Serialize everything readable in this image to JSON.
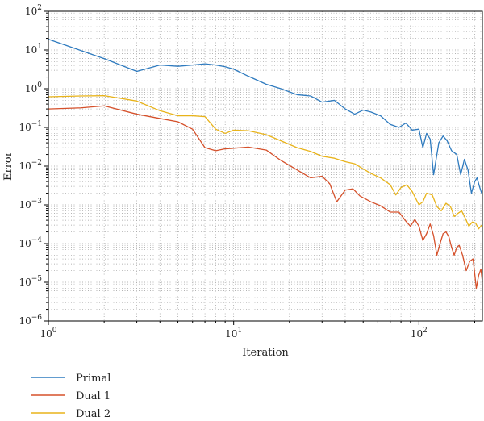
{
  "chart_data": {
    "type": "line",
    "xlabel": "Iteration",
    "ylabel": "Error",
    "xscale": "log",
    "yscale": "log",
    "xlim": [
      1,
      220
    ],
    "ylim": [
      1e-06,
      100
    ],
    "grid": "on (dotted, major and minor)",
    "legend_position": "below-left",
    "x_ticks": [
      {
        "value": 1,
        "base": "10",
        "exp": "0"
      },
      {
        "value": 10,
        "base": "10",
        "exp": "1"
      },
      {
        "value": 100,
        "base": "10",
        "exp": "2"
      }
    ],
    "y_ticks": [
      {
        "value": 1e-06,
        "base": "10",
        "exp": "−6"
      },
      {
        "value": 1e-05,
        "base": "10",
        "exp": "−5"
      },
      {
        "value": 0.0001,
        "base": "10",
        "exp": "−4"
      },
      {
        "value": 0.001,
        "base": "10",
        "exp": "−3"
      },
      {
        "value": 0.01,
        "base": "10",
        "exp": "−2"
      },
      {
        "value": 0.1,
        "base": "10",
        "exp": "−1"
      },
      {
        "value": 1,
        "base": "10",
        "exp": "0"
      },
      {
        "value": 10,
        "base": "10",
        "exp": "1"
      },
      {
        "value": 100,
        "base": "10",
        "exp": "2"
      }
    ],
    "series": [
      {
        "name": "Primal",
        "color": "#2f7bbf",
        "points": [
          [
            1,
            19
          ],
          [
            2,
            6
          ],
          [
            3,
            2.8
          ],
          [
            4,
            4.1
          ],
          [
            5,
            3.8
          ],
          [
            6,
            4.1
          ],
          [
            7,
            4.4
          ],
          [
            8,
            4.1
          ],
          [
            9,
            3.7
          ],
          [
            10,
            3.2
          ],
          [
            12,
            2.1
          ],
          [
            15,
            1.3
          ],
          [
            18,
            1.0
          ],
          [
            22,
            0.7
          ],
          [
            26,
            0.65
          ],
          [
            30,
            0.45
          ],
          [
            35,
            0.5
          ],
          [
            40,
            0.3
          ],
          [
            45,
            0.22
          ],
          [
            50,
            0.28
          ],
          [
            55,
            0.25
          ],
          [
            62,
            0.2
          ],
          [
            70,
            0.12
          ],
          [
            78,
            0.1
          ],
          [
            85,
            0.13
          ],
          [
            92,
            0.085
          ],
          [
            100,
            0.09
          ],
          [
            105,
            0.03
          ],
          [
            110,
            0.07
          ],
          [
            115,
            0.05
          ],
          [
            120,
            0.006
          ],
          [
            128,
            0.04
          ],
          [
            135,
            0.06
          ],
          [
            142,
            0.045
          ],
          [
            150,
            0.025
          ],
          [
            160,
            0.02
          ],
          [
            168,
            0.006
          ],
          [
            176,
            0.015
          ],
          [
            184,
            0.008
          ],
          [
            192,
            0.002
          ],
          [
            200,
            0.004
          ],
          [
            206,
            0.005
          ],
          [
            212,
            0.003
          ],
          [
            218,
            0.002
          ]
        ]
      },
      {
        "name": "Dual 1",
        "color": "#d5502a",
        "points": [
          [
            1,
            0.3
          ],
          [
            1.5,
            0.32
          ],
          [
            2,
            0.36
          ],
          [
            3,
            0.22
          ],
          [
            4,
            0.17
          ],
          [
            5,
            0.14
          ],
          [
            6,
            0.09
          ],
          [
            7,
            0.03
          ],
          [
            8,
            0.025
          ],
          [
            9,
            0.028
          ],
          [
            10,
            0.029
          ],
          [
            12,
            0.031
          ],
          [
            15,
            0.026
          ],
          [
            18,
            0.014
          ],
          [
            22,
            0.008
          ],
          [
            26,
            0.005
          ],
          [
            30,
            0.0055
          ],
          [
            33,
            0.0035
          ],
          [
            36,
            0.0012
          ],
          [
            40,
            0.0024
          ],
          [
            44,
            0.0026
          ],
          [
            48,
            0.0017
          ],
          [
            55,
            0.0012
          ],
          [
            62,
            0.00095
          ],
          [
            70,
            0.00065
          ],
          [
            78,
            0.00065
          ],
          [
            85,
            0.00038
          ],
          [
            90,
            0.00028
          ],
          [
            95,
            0.00042
          ],
          [
            100,
            0.00028
          ],
          [
            105,
            0.00012
          ],
          [
            110,
            0.00018
          ],
          [
            115,
            0.00032
          ],
          [
            120,
            0.00016
          ],
          [
            125,
            5e-05
          ],
          [
            130,
            0.0001
          ],
          [
            135,
            0.00018
          ],
          [
            140,
            0.0002
          ],
          [
            145,
            0.00015
          ],
          [
            150,
            8e-05
          ],
          [
            155,
            5e-05
          ],
          [
            160,
            8e-05
          ],
          [
            165,
            9e-05
          ],
          [
            172,
            5e-05
          ],
          [
            180,
            2e-05
          ],
          [
            188,
            3.5e-05
          ],
          [
            196,
            4e-05
          ],
          [
            204,
            7e-06
          ],
          [
            210,
            1.5e-05
          ],
          [
            216,
            2.2e-05
          ],
          [
            220,
            1e-05
          ]
        ]
      },
      {
        "name": "Dual 2",
        "color": "#e8b31a",
        "points": [
          [
            1,
            0.62
          ],
          [
            1.5,
            0.65
          ],
          [
            2,
            0.66
          ],
          [
            3,
            0.48
          ],
          [
            4,
            0.27
          ],
          [
            5,
            0.2
          ],
          [
            6,
            0.2
          ],
          [
            7,
            0.19
          ],
          [
            8,
            0.09
          ],
          [
            9,
            0.07
          ],
          [
            10,
            0.085
          ],
          [
            12,
            0.082
          ],
          [
            15,
            0.065
          ],
          [
            18,
            0.045
          ],
          [
            22,
            0.03
          ],
          [
            26,
            0.024
          ],
          [
            30,
            0.018
          ],
          [
            35,
            0.016
          ],
          [
            40,
            0.013
          ],
          [
            45,
            0.0115
          ],
          [
            50,
            0.0085
          ],
          [
            55,
            0.0065
          ],
          [
            62,
            0.005
          ],
          [
            70,
            0.0033
          ],
          [
            75,
            0.0018
          ],
          [
            80,
            0.0028
          ],
          [
            86,
            0.0033
          ],
          [
            92,
            0.0022
          ],
          [
            100,
            0.001
          ],
          [
            105,
            0.0012
          ],
          [
            110,
            0.002
          ],
          [
            118,
            0.0018
          ],
          [
            125,
            0.0009
          ],
          [
            132,
            0.0007
          ],
          [
            140,
            0.0011
          ],
          [
            148,
            0.0009
          ],
          [
            155,
            0.0005
          ],
          [
            162,
            0.0006
          ],
          [
            170,
            0.0007
          ],
          [
            178,
            0.00045
          ],
          [
            186,
            0.00028
          ],
          [
            194,
            0.00036
          ],
          [
            202,
            0.00034
          ],
          [
            210,
            0.00024
          ],
          [
            218,
            0.0003
          ]
        ]
      }
    ]
  }
}
